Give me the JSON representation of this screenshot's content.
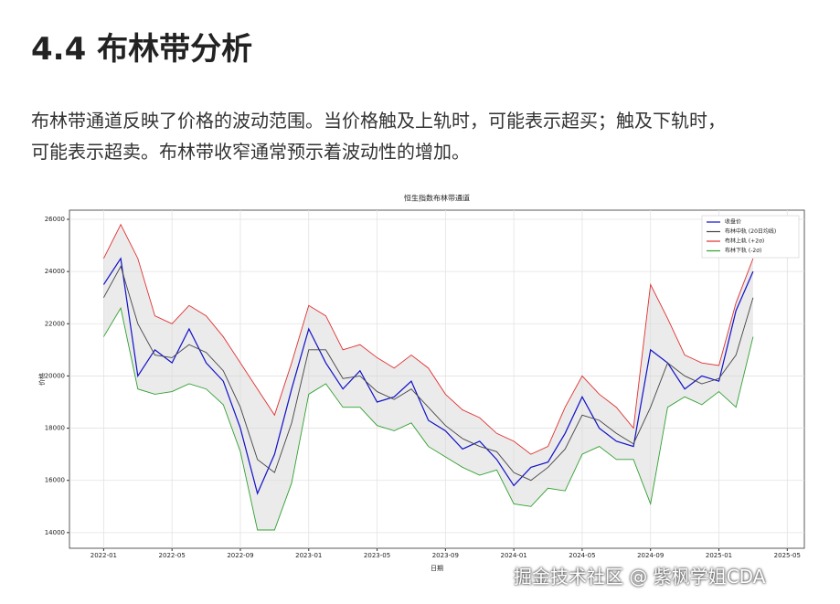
{
  "header": {
    "title": "4.4 布林带分析"
  },
  "paragraph": {
    "lines": [
      "布林带通道反映了价格的波动范围。当价格触及上轨时，可能表示超买；触及下轨时，",
      "可能表示超卖。布林带收窄通常预示着波动性的增加。"
    ]
  },
  "chart_data": {
    "type": "line",
    "title": "恒生指数布林带通道",
    "xlabel": "日期",
    "ylabel": "价格",
    "x": [
      "2022-01",
      "2022-02",
      "2022-03",
      "2022-04",
      "2022-05",
      "2022-06",
      "2022-07",
      "2022-08",
      "2022-09",
      "2022-10",
      "2022-11",
      "2022-12",
      "2023-01",
      "2023-02",
      "2023-03",
      "2023-04",
      "2023-05",
      "2023-06",
      "2023-07",
      "2023-08",
      "2023-09",
      "2023-10",
      "2023-11",
      "2023-12",
      "2024-01",
      "2024-02",
      "2024-03",
      "2024-04",
      "2024-05",
      "2024-06",
      "2024-07",
      "2024-08",
      "2024-09",
      "2024-10",
      "2024-11",
      "2024-12",
      "2025-01",
      "2025-02",
      "2025-03"
    ],
    "series": [
      {
        "name": "收盘价",
        "color": "#1010c8",
        "values": [
          23500,
          24500,
          20000,
          21000,
          20500,
          21800,
          20500,
          19800,
          18000,
          15500,
          17000,
          19500,
          21800,
          20500,
          19500,
          20200,
          19000,
          19200,
          19800,
          18300,
          17900,
          17200,
          17500,
          16800,
          15800,
          16500,
          16700,
          17800,
          19200,
          18000,
          17500,
          17300,
          21000,
          20500,
          19500,
          20000,
          19800,
          22500,
          24000
        ]
      },
      {
        "name": "布林中轨 (20日均线)",
        "color": "#444444",
        "values": [
          23000,
          24200,
          22000,
          20800,
          20700,
          21200,
          20900,
          20200,
          18800,
          16800,
          16300,
          18200,
          21000,
          21000,
          19900,
          20000,
          19400,
          19100,
          19500,
          18800,
          18100,
          17600,
          17300,
          17100,
          16300,
          16000,
          16500,
          17200,
          18500,
          18300,
          17800,
          17400,
          18800,
          20500,
          20000,
          19700,
          19900,
          20800,
          23000
        ]
      },
      {
        "name": "布林上轨 (+2σ)",
        "color": "#e03030",
        "values": [
          24500,
          25800,
          24500,
          22300,
          22000,
          22700,
          22300,
          21500,
          20500,
          19500,
          18500,
          20500,
          22700,
          22300,
          21000,
          21200,
          20700,
          20300,
          20800,
          20300,
          19300,
          18700,
          18400,
          17800,
          17500,
          17000,
          17300,
          18800,
          20000,
          19300,
          18800,
          18000,
          23500,
          22200,
          20800,
          20500,
          20400,
          22800,
          24500
        ]
      },
      {
        "name": "布林下轨 (-2σ)",
        "color": "#30a030",
        "values": [
          21500,
          22600,
          19500,
          19300,
          19400,
          19700,
          19500,
          18900,
          17100,
          14100,
          14100,
          15900,
          19300,
          19700,
          18800,
          18800,
          18100,
          17900,
          18200,
          17300,
          16900,
          16500,
          16200,
          16400,
          15100,
          15000,
          15700,
          15600,
          17000,
          17300,
          16800,
          16800,
          15100,
          18800,
          19200,
          18900,
          19400,
          18800,
          21500
        ]
      }
    ],
    "xlim": [
      "2021-11",
      "2025-06"
    ],
    "xticks": [
      "2022-01",
      "2022-05",
      "2022-09",
      "2023-01",
      "2023-05",
      "2023-09",
      "2024-01",
      "2024-05",
      "2024-09",
      "2025-01",
      "2025-05"
    ],
    "ylim": [
      13400,
      26350
    ],
    "yticks": [
      14000,
      16000,
      18000,
      20000,
      22000,
      24000,
      26000
    ],
    "grid": true,
    "legend": "upper-right",
    "band_fill": "#d8d8d8"
  },
  "watermark": "掘金技术社区 @ 紫枫学姐CDA"
}
